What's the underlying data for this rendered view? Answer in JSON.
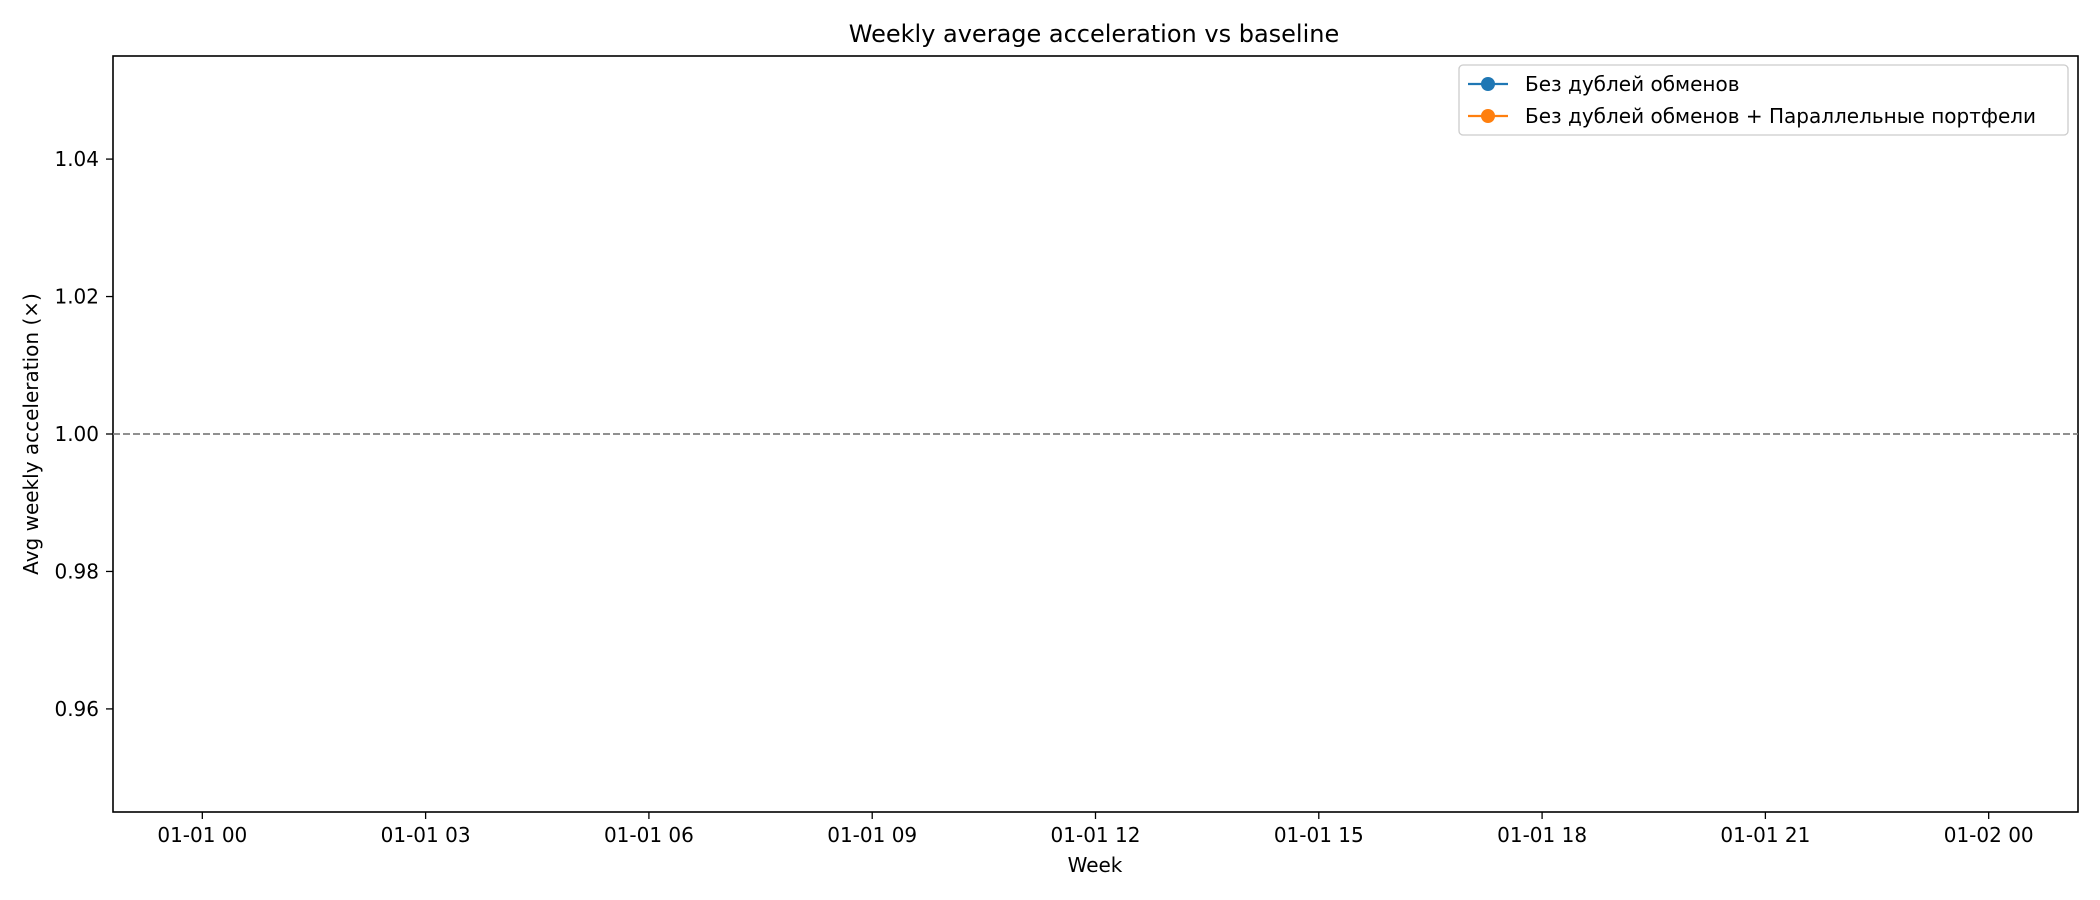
{
  "chart_data": {
    "type": "line",
    "title": "Weekly average acceleration vs baseline",
    "xlabel": "Week",
    "ylabel": "Avg weekly acceleration (×)",
    "xlim": [
      "2000-12-31 22:48",
      "2001-01-02 01:12"
    ],
    "ylim": [
      0.945,
      1.055
    ],
    "x_ticks": [
      {
        "x": "2001-01-01 00:00",
        "label": "01-01 00"
      },
      {
        "x": "2001-01-01 03:00",
        "label": "01-01 03"
      },
      {
        "x": "2001-01-01 06:00",
        "label": "01-01 06"
      },
      {
        "x": "2001-01-01 09:00",
        "label": "01-01 09"
      },
      {
        "x": "2001-01-01 12:00",
        "label": "01-01 12"
      },
      {
        "x": "2001-01-01 15:00",
        "label": "01-01 15"
      },
      {
        "x": "2001-01-01 18:00",
        "label": "01-01 18"
      },
      {
        "x": "2001-01-01 21:00",
        "label": "01-01 21"
      },
      {
        "x": "2001-01-02 00:00",
        "label": "01-02 00"
      }
    ],
    "y_ticks": [
      {
        "y": 0.96,
        "label": "0.96"
      },
      {
        "y": 0.98,
        "label": "0.98"
      },
      {
        "y": 1.0,
        "label": "1.00"
      },
      {
        "y": 1.02,
        "label": "1.02"
      },
      {
        "y": 1.04,
        "label": "1.04"
      }
    ],
    "series": [
      {
        "name": "Без дублей обменов",
        "color": "#1f77b4",
        "marker": "circle",
        "x": [],
        "y": []
      },
      {
        "name": "Без дублей обменов + Параллельные портфели",
        "color": "#ff7f0e",
        "marker": "circle",
        "x": [],
        "y": []
      }
    ],
    "baseline": {
      "y": 1.0,
      "style": "dashed",
      "color": "#808080"
    },
    "grid": false,
    "legend_position": "top-right"
  }
}
